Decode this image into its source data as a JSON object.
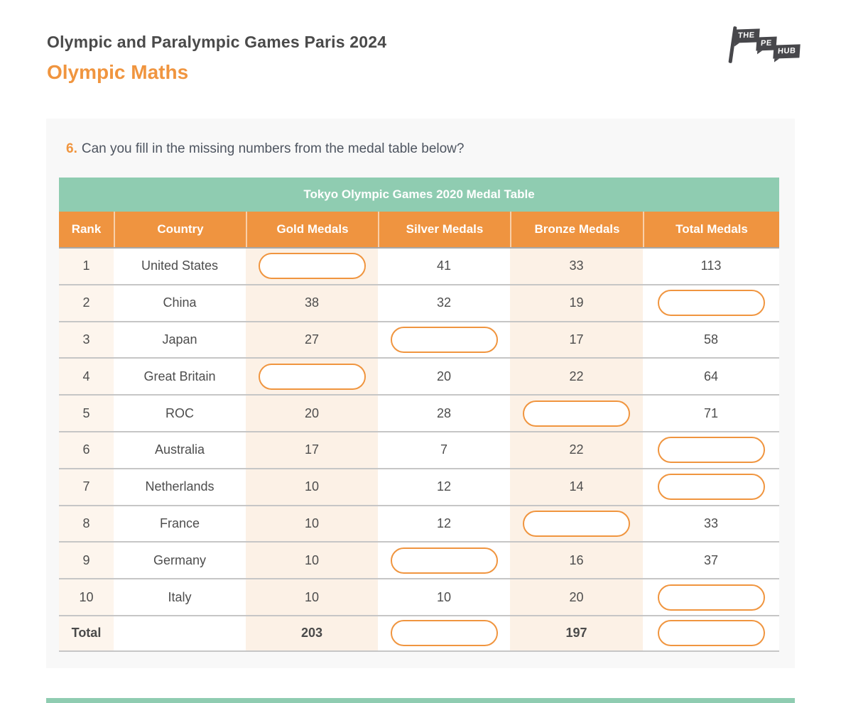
{
  "page": {
    "title": "Olympic and Paralympic Games Paris 2024",
    "subtitle": "Olympic Maths"
  },
  "logo": {
    "part1": "THE",
    "part2": "PE",
    "part3": "HUB"
  },
  "question": {
    "number": "6.",
    "text": "Can you fill in the missing numbers from the medal table below?"
  },
  "table": {
    "title": "Tokyo Olympic Games 2020 Medal Table",
    "columns": [
      "Rank",
      "Country",
      "Gold Medals",
      "Silver Medals",
      "Bronze Medals",
      "Total Medals"
    ],
    "rows": [
      {
        "rank": "1",
        "country": "United States",
        "gold": "",
        "silver": "41",
        "bronze": "33",
        "total": "113"
      },
      {
        "rank": "2",
        "country": "China",
        "gold": "38",
        "silver": "32",
        "bronze": "19",
        "total": ""
      },
      {
        "rank": "3",
        "country": "Japan",
        "gold": "27",
        "silver": "",
        "bronze": "17",
        "total": "58"
      },
      {
        "rank": "4",
        "country": "Great Britain",
        "gold": "",
        "silver": "20",
        "bronze": "22",
        "total": "64"
      },
      {
        "rank": "5",
        "country": "ROC",
        "gold": "20",
        "silver": "28",
        "bronze": "",
        "total": "71"
      },
      {
        "rank": "6",
        "country": "Australia",
        "gold": "17",
        "silver": "7",
        "bronze": "22",
        "total": ""
      },
      {
        "rank": "7",
        "country": "Netherlands",
        "gold": "10",
        "silver": "12",
        "bronze": "14",
        "total": ""
      },
      {
        "rank": "8",
        "country": "France",
        "gold": "10",
        "silver": "12",
        "bronze": "",
        "total": "33"
      },
      {
        "rank": "9",
        "country": "Germany",
        "gold": "10",
        "silver": "",
        "bronze": "16",
        "total": "37"
      },
      {
        "rank": "10",
        "country": "Italy",
        "gold": "10",
        "silver": "10",
        "bronze": "20",
        "total": ""
      }
    ],
    "total_row": {
      "rank": "Total",
      "country": "",
      "gold": "203",
      "silver": "",
      "bronze": "197",
      "total": ""
    }
  },
  "colors": {
    "accent_orange": "#f0953f",
    "header_orange": "#ef9440",
    "accent_green": "#8fccb1",
    "card_bg": "#f8f8f8",
    "tint_peach": "#fcf1e6",
    "text_dark": "#4a4a4a"
  }
}
